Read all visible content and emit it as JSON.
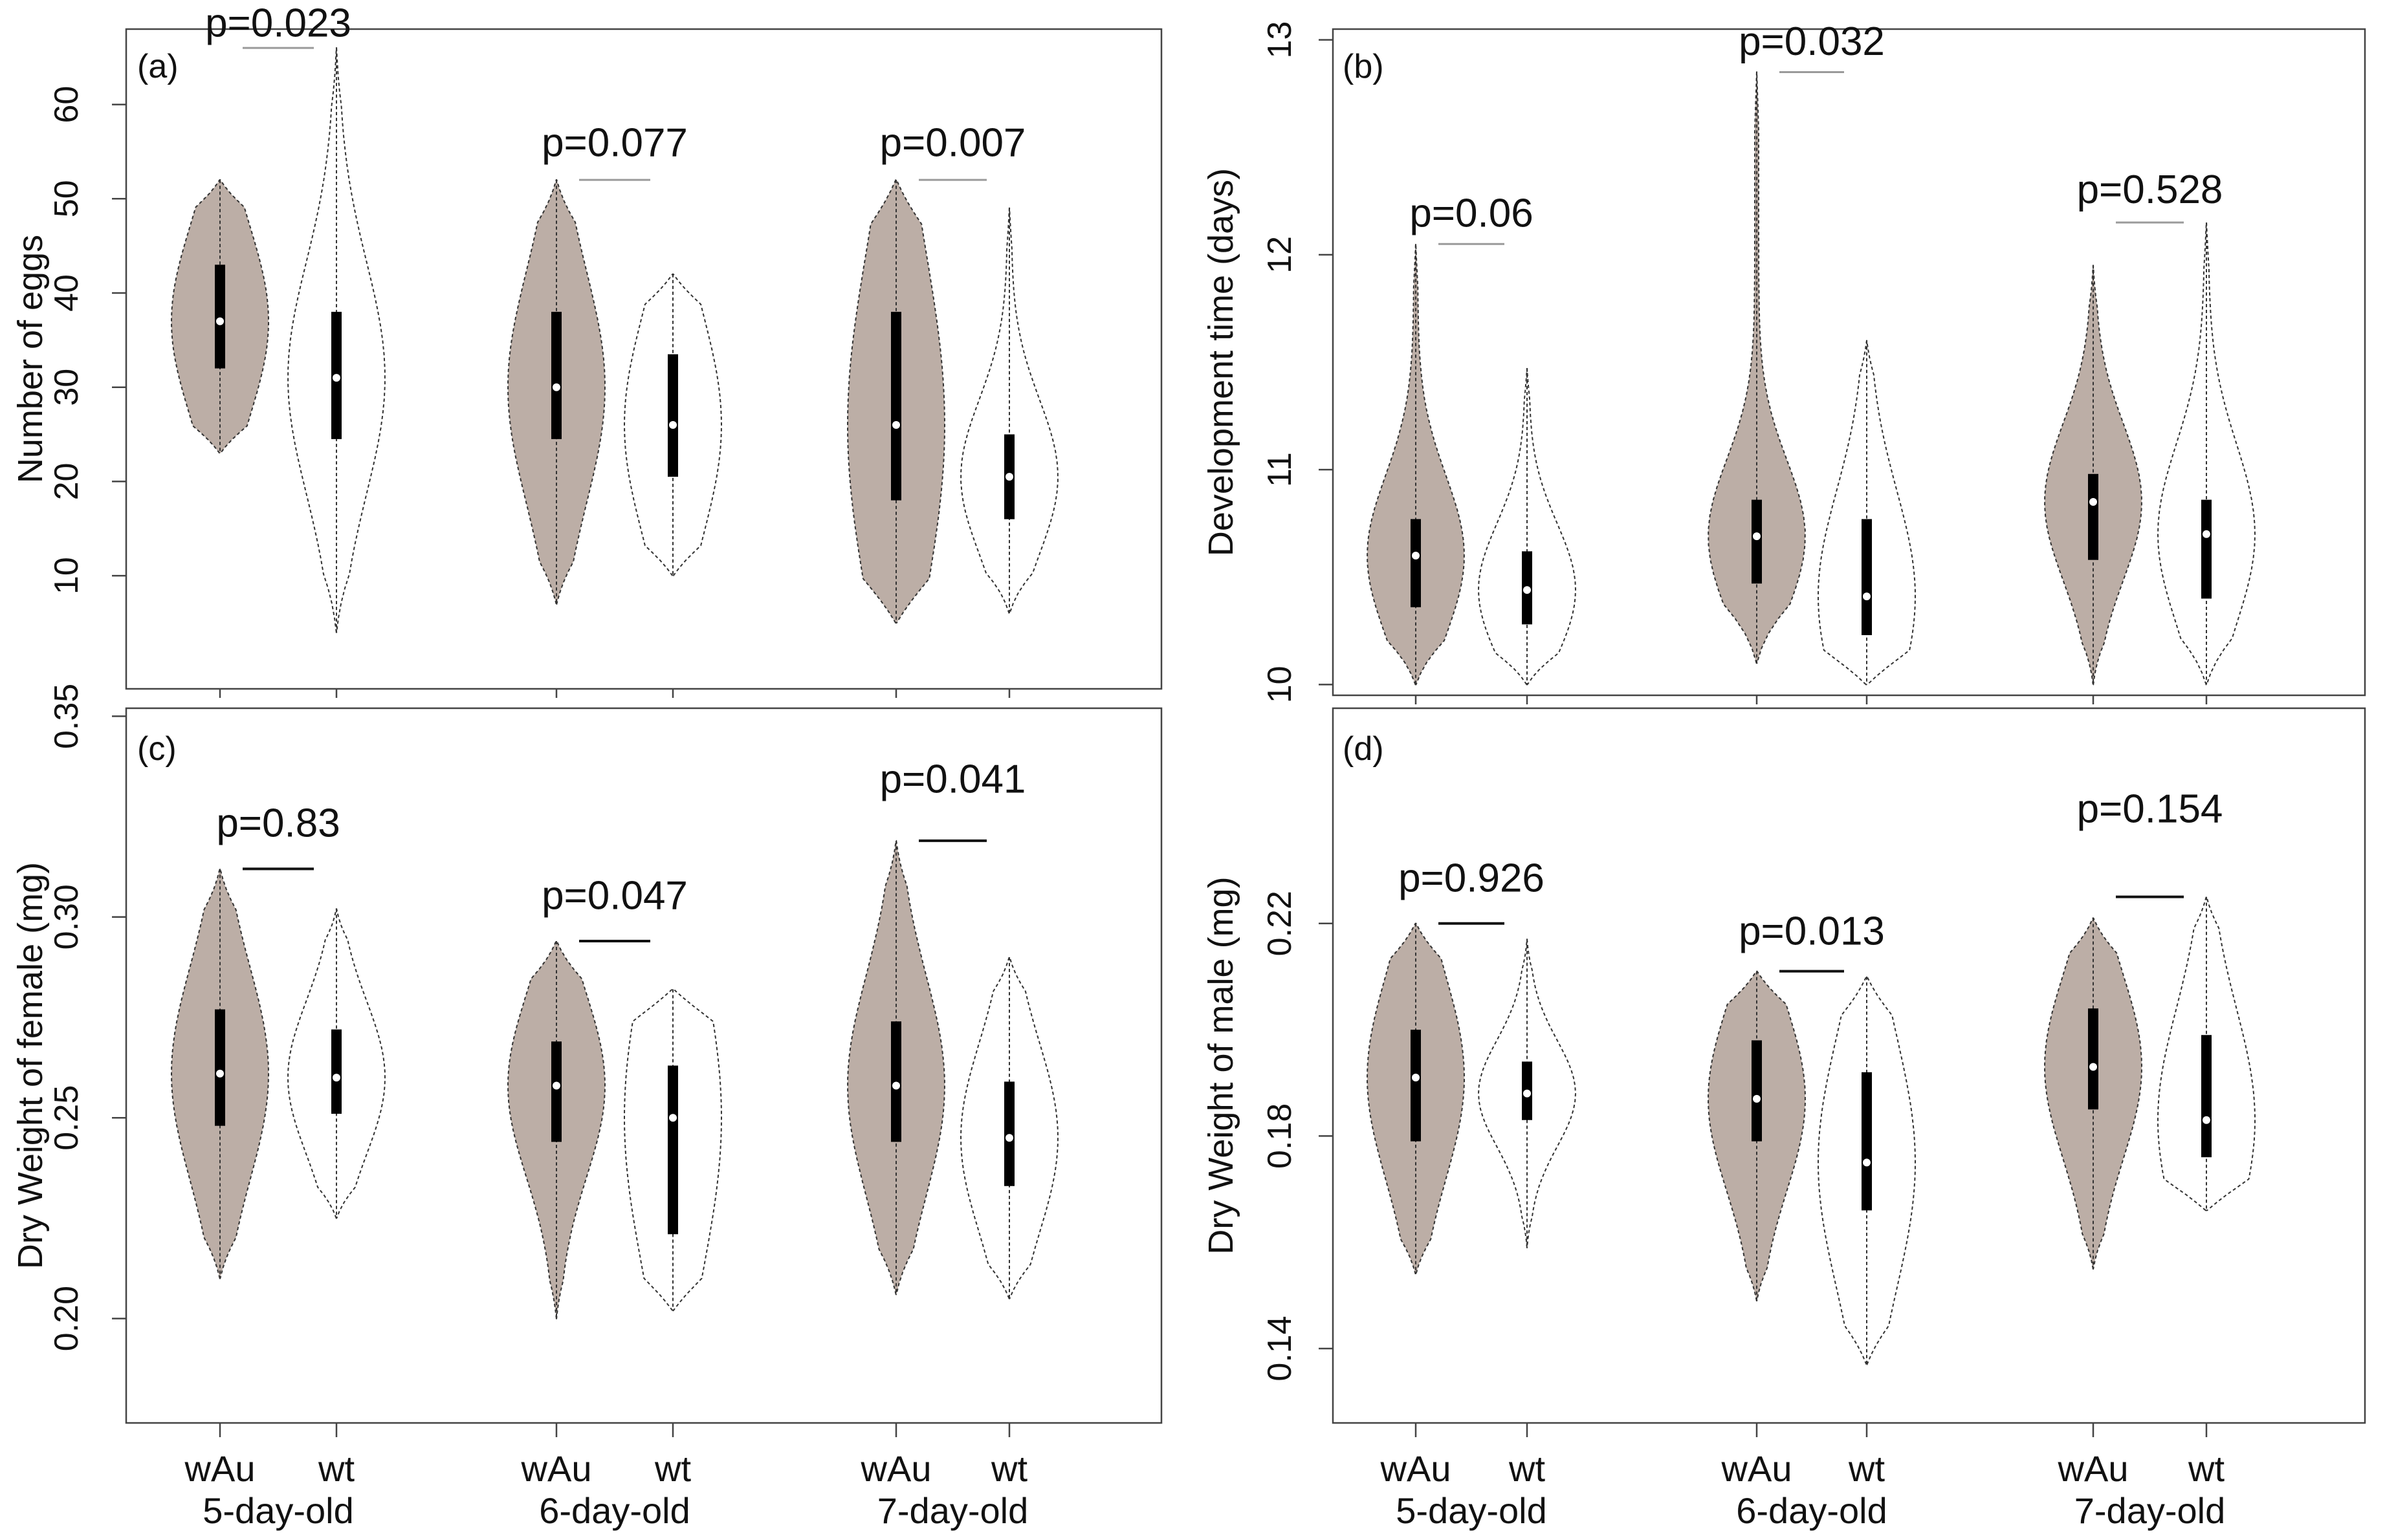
{
  "figure": {
    "x_group_labels": [
      "wAu",
      "wt"
    ],
    "x_age_labels": [
      "5-day-old",
      "6-day-old",
      "7-day-old"
    ]
  },
  "colors": {
    "wAu_fill": "#bcaea6",
    "wt_fill": "#ffffff",
    "outline": "#333333",
    "box": "#000000",
    "median": "#ffffff",
    "bar_light": "#9a9a9a",
    "bar_dark": "#111111"
  },
  "chart_data": [
    {
      "type": "violin",
      "panel": "(a)",
      "ylabel": "Number of eggs",
      "ylim": [
        -2,
        68
      ],
      "yticks": [
        10,
        20,
        30,
        40,
        50,
        60
      ],
      "categories": [
        "5-day-old",
        "6-day-old",
        "7-day-old"
      ],
      "series": [
        {
          "name": "wAu",
          "groups": [
            {
              "min": 23,
              "q1": 32,
              "median": 37,
              "q3": 43,
              "max": 52
            },
            {
              "min": 7,
              "q1": 24.5,
              "median": 30,
              "q3": 38,
              "max": 52
            },
            {
              "min": 5,
              "q1": 18,
              "median": 26,
              "q3": 38,
              "max": 52
            }
          ]
        },
        {
          "name": "wt",
          "groups": [
            {
              "min": 4,
              "q1": 24.5,
              "median": 31,
              "q3": 38,
              "max": 66
            },
            {
              "min": 10,
              "q1": 20.5,
              "median": 26,
              "q3": 33.5,
              "max": 42
            },
            {
              "min": 6,
              "q1": 16,
              "median": 20.5,
              "q3": 25,
              "max": 49
            }
          ]
        }
      ],
      "pvalues": [
        "p=0.023",
        "p=0.077",
        "p=0.007"
      ]
    },
    {
      "type": "violin",
      "panel": "(b)",
      "ylabel": "Development time (days)",
      "ylim": [
        9.95,
        13.05
      ],
      "yticks": [
        10,
        11,
        12,
        13
      ],
      "categories": [
        "5-day-old",
        "6-day-old",
        "7-day-old"
      ],
      "series": [
        {
          "name": "wAu",
          "groups": [
            {
              "min": 10.0,
              "q1": 10.36,
              "median": 10.6,
              "q3": 10.77,
              "max": 12.05
            },
            {
              "min": 10.1,
              "q1": 10.47,
              "median": 10.69,
              "q3": 10.86,
              "max": 12.85
            },
            {
              "min": 10.0,
              "q1": 10.58,
              "median": 10.85,
              "q3": 10.98,
              "max": 11.95
            }
          ]
        },
        {
          "name": "wt",
          "groups": [
            {
              "min": 10.0,
              "q1": 10.28,
              "median": 10.44,
              "q3": 10.62,
              "max": 11.47
            },
            {
              "min": 10.0,
              "q1": 10.23,
              "median": 10.41,
              "q3": 10.77,
              "max": 11.6
            },
            {
              "min": 10.0,
              "q1": 10.4,
              "median": 10.7,
              "q3": 10.86,
              "max": 12.15
            }
          ]
        }
      ],
      "pvalues": [
        "p=0.06",
        "p=0.032",
        "p=0.528"
      ]
    },
    {
      "type": "violin",
      "panel": "(c)",
      "ylabel": "Dry Weight of female (mg)",
      "ylim": [
        0.174,
        0.352
      ],
      "yticks": [
        0.2,
        0.25,
        0.3,
        0.35
      ],
      "ytick_labels": [
        "0.20",
        "0.25",
        "0.30",
        "0.35"
      ],
      "categories": [
        "5-day-old",
        "6-day-old",
        "7-day-old"
      ],
      "series": [
        {
          "name": "wAu",
          "groups": [
            {
              "min": 0.21,
              "q1": 0.248,
              "median": 0.261,
              "q3": 0.277,
              "max": 0.312
            },
            {
              "min": 0.2,
              "q1": 0.244,
              "median": 0.258,
              "q3": 0.269,
              "max": 0.294
            },
            {
              "min": 0.206,
              "q1": 0.244,
              "median": 0.258,
              "q3": 0.274,
              "max": 0.319
            }
          ]
        },
        {
          "name": "wt",
          "groups": [
            {
              "min": 0.225,
              "q1": 0.251,
              "median": 0.26,
              "q3": 0.272,
              "max": 0.302
            },
            {
              "min": 0.202,
              "q1": 0.221,
              "median": 0.25,
              "q3": 0.263,
              "max": 0.282
            },
            {
              "min": 0.205,
              "q1": 0.233,
              "median": 0.245,
              "q3": 0.259,
              "max": 0.29
            }
          ]
        }
      ],
      "pvalues": [
        "p=0.83",
        "p=0.047",
        "p=0.041"
      ]
    },
    {
      "type": "violin",
      "panel": "(d)",
      "ylabel": "Dry Weight of male (mg)",
      "ylim": [
        0.126,
        0.2605
      ],
      "yticks": [
        0.14,
        0.18,
        0.22
      ],
      "ytick_labels": [
        "0.14",
        "0.18",
        "0.22"
      ],
      "categories": [
        "5-day-old",
        "6-day-old",
        "7-day-old"
      ],
      "series": [
        {
          "name": "wAu",
          "groups": [
            {
              "min": 0.154,
              "q1": 0.179,
              "median": 0.191,
              "q3": 0.2,
              "max": 0.22
            },
            {
              "min": 0.149,
              "q1": 0.179,
              "median": 0.187,
              "q3": 0.198,
              "max": 0.211
            },
            {
              "min": 0.155,
              "q1": 0.185,
              "median": 0.193,
              "q3": 0.204,
              "max": 0.221
            }
          ]
        },
        {
          "name": "wt",
          "groups": [
            {
              "min": 0.159,
              "q1": 0.183,
              "median": 0.188,
              "q3": 0.194,
              "max": 0.217
            },
            {
              "min": 0.137,
              "q1": 0.166,
              "median": 0.175,
              "q3": 0.192,
              "max": 0.21
            },
            {
              "min": 0.166,
              "q1": 0.176,
              "median": 0.183,
              "q3": 0.199,
              "max": 0.225
            }
          ]
        }
      ],
      "pvalues": [
        "p=0.926",
        "p=0.013",
        "p=0.154"
      ]
    }
  ]
}
